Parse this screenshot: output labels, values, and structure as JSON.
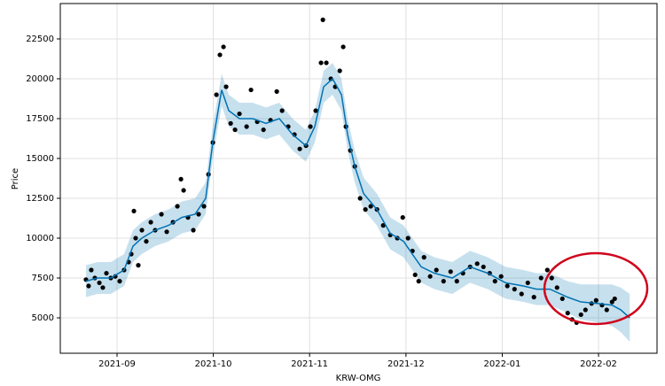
{
  "chart_data": {
    "type": "line",
    "x_label": "KRW-OMG",
    "y_label": "Price",
    "xlim": [
      2021.6176,
      2022.1339
    ],
    "ylim": [
      2780,
      24720
    ],
    "xticks": [
      {
        "value": 2021.6667,
        "label": "2021-09"
      },
      {
        "value": 2021.75,
        "label": "2021-10"
      },
      {
        "value": 2021.8333,
        "label": "2021-11"
      },
      {
        "value": 2021.9167,
        "label": "2021-12"
      },
      {
        "value": 2022.0,
        "label": "2022-01"
      },
      {
        "value": 2022.0833,
        "label": "2022-02"
      }
    ],
    "yticks": [
      5000,
      7500,
      10000,
      12500,
      15000,
      17500,
      20000,
      22500
    ],
    "grid": true,
    "forecast": {
      "color": "#0072b2",
      "band_color": "#0072b2",
      "x": [
        2021.6398,
        2021.6498,
        2021.6613,
        2021.6728,
        2021.6805,
        2021.6881,
        2021.6996,
        2021.7112,
        2021.7227,
        2021.7342,
        2021.7434,
        2021.7495,
        2021.7572,
        2021.7634,
        2021.7726,
        2021.7841,
        2021.7956,
        2021.8071,
        2021.8186,
        2021.8301,
        2021.8378,
        2021.8455,
        2021.8532,
        2021.8609,
        2021.8662,
        2021.8724,
        2021.88,
        2021.8915,
        2021.9031,
        2021.9146,
        2021.9222,
        2021.9299,
        2021.9414,
        2021.9568,
        2021.9721,
        2021.9875,
        2022.0028,
        2022.0182,
        2022.0297,
        2022.0412,
        2022.0565,
        2022.068,
        2022.0834,
        2022.0949,
        2022.1026,
        2022.1103
      ],
      "values": [
        7300,
        7500,
        7500,
        8000,
        9500,
        10000,
        10500,
        10800,
        11300,
        11500,
        12500,
        16000,
        19300,
        18000,
        17500,
        17500,
        17200,
        17500,
        16500,
        15800,
        17000,
        19500,
        20000,
        19000,
        16500,
        14500,
        12800,
        11800,
        10300,
        9800,
        9000,
        8200,
        7800,
        7500,
        8200,
        7800,
        7200,
        7000,
        6800,
        6800,
        6300,
        6000,
        5900,
        5800,
        5500,
        5000
      ],
      "lower": [
        6300,
        6500,
        6500,
        7000,
        8500,
        9000,
        9500,
        9800,
        10300,
        10500,
        11500,
        15000,
        18300,
        17000,
        16500,
        16500,
        16200,
        16500,
        15500,
        14800,
        16000,
        18500,
        19000,
        18000,
        15500,
        13500,
        11800,
        10800,
        9300,
        8800,
        8000,
        7200,
        6800,
        6500,
        7200,
        6800,
        6200,
        6000,
        5800,
        5800,
        5300,
        4900,
        4700,
        4500,
        4100,
        3500
      ],
      "upper": [
        8300,
        8500,
        8500,
        9000,
        10500,
        11000,
        11500,
        11800,
        12300,
        12500,
        13500,
        17000,
        20300,
        19000,
        18500,
        18500,
        18200,
        18500,
        17500,
        16800,
        18000,
        20500,
        21000,
        20000,
        17500,
        15500,
        13800,
        12800,
        11300,
        10800,
        10000,
        9200,
        8800,
        8500,
        9200,
        8800,
        8200,
        8000,
        7800,
        7800,
        7300,
        7100,
        7100,
        7100,
        6900,
        6500
      ]
    },
    "observed": {
      "color": "#000000",
      "x": [
        2021.6398,
        2021.6421,
        2021.6444,
        2021.6475,
        2021.6514,
        2021.6544,
        2021.6575,
        2021.6613,
        2021.6652,
        2021.669,
        2021.6728,
        2021.6767,
        2021.679,
        2021.6813,
        2021.6828,
        2021.6851,
        2021.6882,
        2021.692,
        2021.6959,
        2021.6997,
        2021.7051,
        2021.7097,
        2021.7151,
        2021.7189,
        2021.722,
        2021.7243,
        2021.7281,
        2021.7327,
        2021.7373,
        2021.7419,
        2021.7458,
        2021.7496,
        2021.7527,
        2021.7557,
        2021.7588,
        2021.7611,
        2021.765,
        2021.7688,
        2021.7726,
        2021.7788,
        2021.7826,
        2021.788,
        2021.7934,
        2021.7995,
        2021.8049,
        2021.8095,
        2021.8148,
        2021.8202,
        2021.8248,
        2021.8302,
        2021.834,
        2021.8386,
        2021.8432,
        2021.8448,
        2021.8478,
        2021.8517,
        2021.8555,
        2021.8594,
        2021.8624,
        2021.8647,
        2021.8686,
        2021.8724,
        2021.877,
        2021.8816,
        2021.8862,
        2021.8916,
        2021.897,
        2021.9031,
        2021.9092,
        2021.9139,
        2021.9185,
        2021.9223,
        2021.9246,
        2021.9277,
        2021.9323,
        2021.9376,
        2021.943,
        2021.9492,
        2021.9553,
        2021.9607,
        2021.966,
        2021.9722,
        2021.9783,
        2021.9837,
        2021.9891,
        2021.9937,
        2021.999,
        2022.0044,
        2022.0106,
        2022.0167,
        2022.0221,
        2022.0274,
        2022.0336,
        2022.039,
        2022.0428,
        2022.0474,
        2022.052,
        2022.0566,
        2022.0604,
        2022.0643,
        2022.0681,
        2022.072,
        2022.0773,
        2022.0812,
        2022.0863,
        2022.0904,
        2022.095,
        2022.0973
      ],
      "values": [
        7400,
        7000,
        8000,
        7500,
        7200,
        6900,
        7800,
        7500,
        7600,
        7300,
        8000,
        8500,
        9000,
        11700,
        10000,
        8300,
        10500,
        9800,
        11000,
        10500,
        11500,
        10400,
        11000,
        12000,
        13700,
        13000,
        11300,
        10500,
        11500,
        12000,
        14000,
        16000,
        19000,
        21500,
        22000,
        19500,
        17200,
        16800,
        17800,
        17000,
        19300,
        17300,
        16800,
        17400,
        19200,
        18000,
        17000,
        16500,
        15600,
        15800,
        17000,
        18000,
        21000,
        23700,
        21000,
        20000,
        19500,
        20500,
        22000,
        17000,
        15500,
        14500,
        12500,
        11800,
        12000,
        11800,
        10800,
        10200,
        10000,
        11300,
        10000,
        9200,
        7700,
        7300,
        8800,
        7600,
        8000,
        7300,
        7900,
        7300,
        7800,
        8200,
        8400,
        8200,
        7800,
        7300,
        7600,
        7000,
        6800,
        6500,
        7200,
        6300,
        7500,
        8000,
        7500,
        6900,
        6200,
        5300,
        4900,
        4700,
        5200,
        5500,
        5900,
        6100,
        5800,
        5500,
        6000,
        6200
      ]
    }
  }
}
